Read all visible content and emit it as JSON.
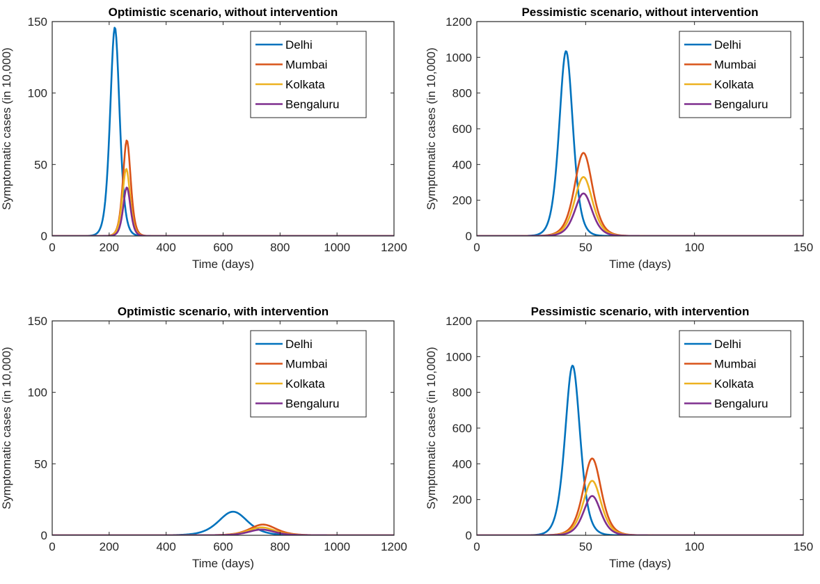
{
  "colors": {
    "Delhi": "#0072BD",
    "Mumbai": "#D95319",
    "Kolkata": "#EDB120",
    "Bengaluru": "#7E2F8E",
    "axis": "#262626"
  },
  "chart_data": [
    {
      "type": "line",
      "title": "Optimistic scenario, without intervention",
      "xlabel": "Time (days)",
      "ylabel": "Symptomatic cases (in 10,000)",
      "xlim": [
        0,
        1200
      ],
      "ylim": [
        0,
        150
      ],
      "xticks": [
        0,
        200,
        400,
        600,
        800,
        1000,
        1200
      ],
      "yticks": [
        0,
        50,
        100,
        150
      ],
      "legend_position": "top-right",
      "series": [
        {
          "name": "Delhi",
          "peak_x": 220,
          "peak_y": 146,
          "width": 22
        },
        {
          "name": "Mumbai",
          "peak_x": 262,
          "peak_y": 67,
          "width": 18
        },
        {
          "name": "Kolkata",
          "peak_x": 260,
          "peak_y": 47,
          "width": 18
        },
        {
          "name": "Bengaluru",
          "peak_x": 262,
          "peak_y": 34,
          "width": 17
        }
      ]
    },
    {
      "type": "line",
      "title": "Pessimistic scenario, without intervention",
      "xlabel": "Time (days)",
      "ylabel": "Symptomatic cases (in 10,000)",
      "xlim": [
        0,
        150
      ],
      "ylim": [
        0,
        1200
      ],
      "xticks": [
        0,
        50,
        100,
        150
      ],
      "yticks": [
        0,
        200,
        400,
        600,
        800,
        1000,
        1200
      ],
      "legend_position": "top-right",
      "series": [
        {
          "name": "Delhi",
          "peak_x": 41,
          "peak_y": 1035,
          "width": 4.2
        },
        {
          "name": "Mumbai",
          "peak_x": 49,
          "peak_y": 465,
          "width": 5.5
        },
        {
          "name": "Kolkata",
          "peak_x": 49,
          "peak_y": 330,
          "width": 5.5
        },
        {
          "name": "Bengaluru",
          "peak_x": 49,
          "peak_y": 238,
          "width": 5.3
        }
      ]
    },
    {
      "type": "line",
      "title": "Optimistic scenario, with intervention",
      "xlabel": "Time (days)",
      "ylabel": "Symptomatic cases (in 10,000)",
      "xlim": [
        0,
        1200
      ],
      "ylim": [
        0,
        150
      ],
      "xticks": [
        0,
        200,
        400,
        600,
        800,
        1000,
        1200
      ],
      "yticks": [
        0,
        50,
        100,
        150
      ],
      "legend_position": "top-right",
      "series": [
        {
          "name": "Delhi",
          "peak_x": 635,
          "peak_y": 16.5,
          "width": 68
        },
        {
          "name": "Mumbai",
          "peak_x": 740,
          "peak_y": 7.5,
          "width": 62
        },
        {
          "name": "Kolkata",
          "peak_x": 735,
          "peak_y": 5.5,
          "width": 62
        },
        {
          "name": "Bengaluru",
          "peak_x": 735,
          "peak_y": 4,
          "width": 60
        }
      ]
    },
    {
      "type": "line",
      "title": "Pessimistic scenario, with intervention",
      "xlabel": "Time (days)",
      "ylabel": "Symptomatic cases (in 10,000)",
      "xlim": [
        0,
        150
      ],
      "ylim": [
        0,
        1200
      ],
      "xticks": [
        0,
        50,
        100,
        150
      ],
      "yticks": [
        0,
        200,
        400,
        600,
        800,
        1000,
        1200
      ],
      "legend_position": "top-right",
      "series": [
        {
          "name": "Delhi",
          "peak_x": 44,
          "peak_y": 950,
          "width": 4.6
        },
        {
          "name": "Mumbai",
          "peak_x": 53,
          "peak_y": 430,
          "width": 5.5
        },
        {
          "name": "Kolkata",
          "peak_x": 53,
          "peak_y": 305,
          "width": 5.5
        },
        {
          "name": "Bengaluru",
          "peak_x": 53,
          "peak_y": 220,
          "width": 5.3
        }
      ]
    }
  ]
}
